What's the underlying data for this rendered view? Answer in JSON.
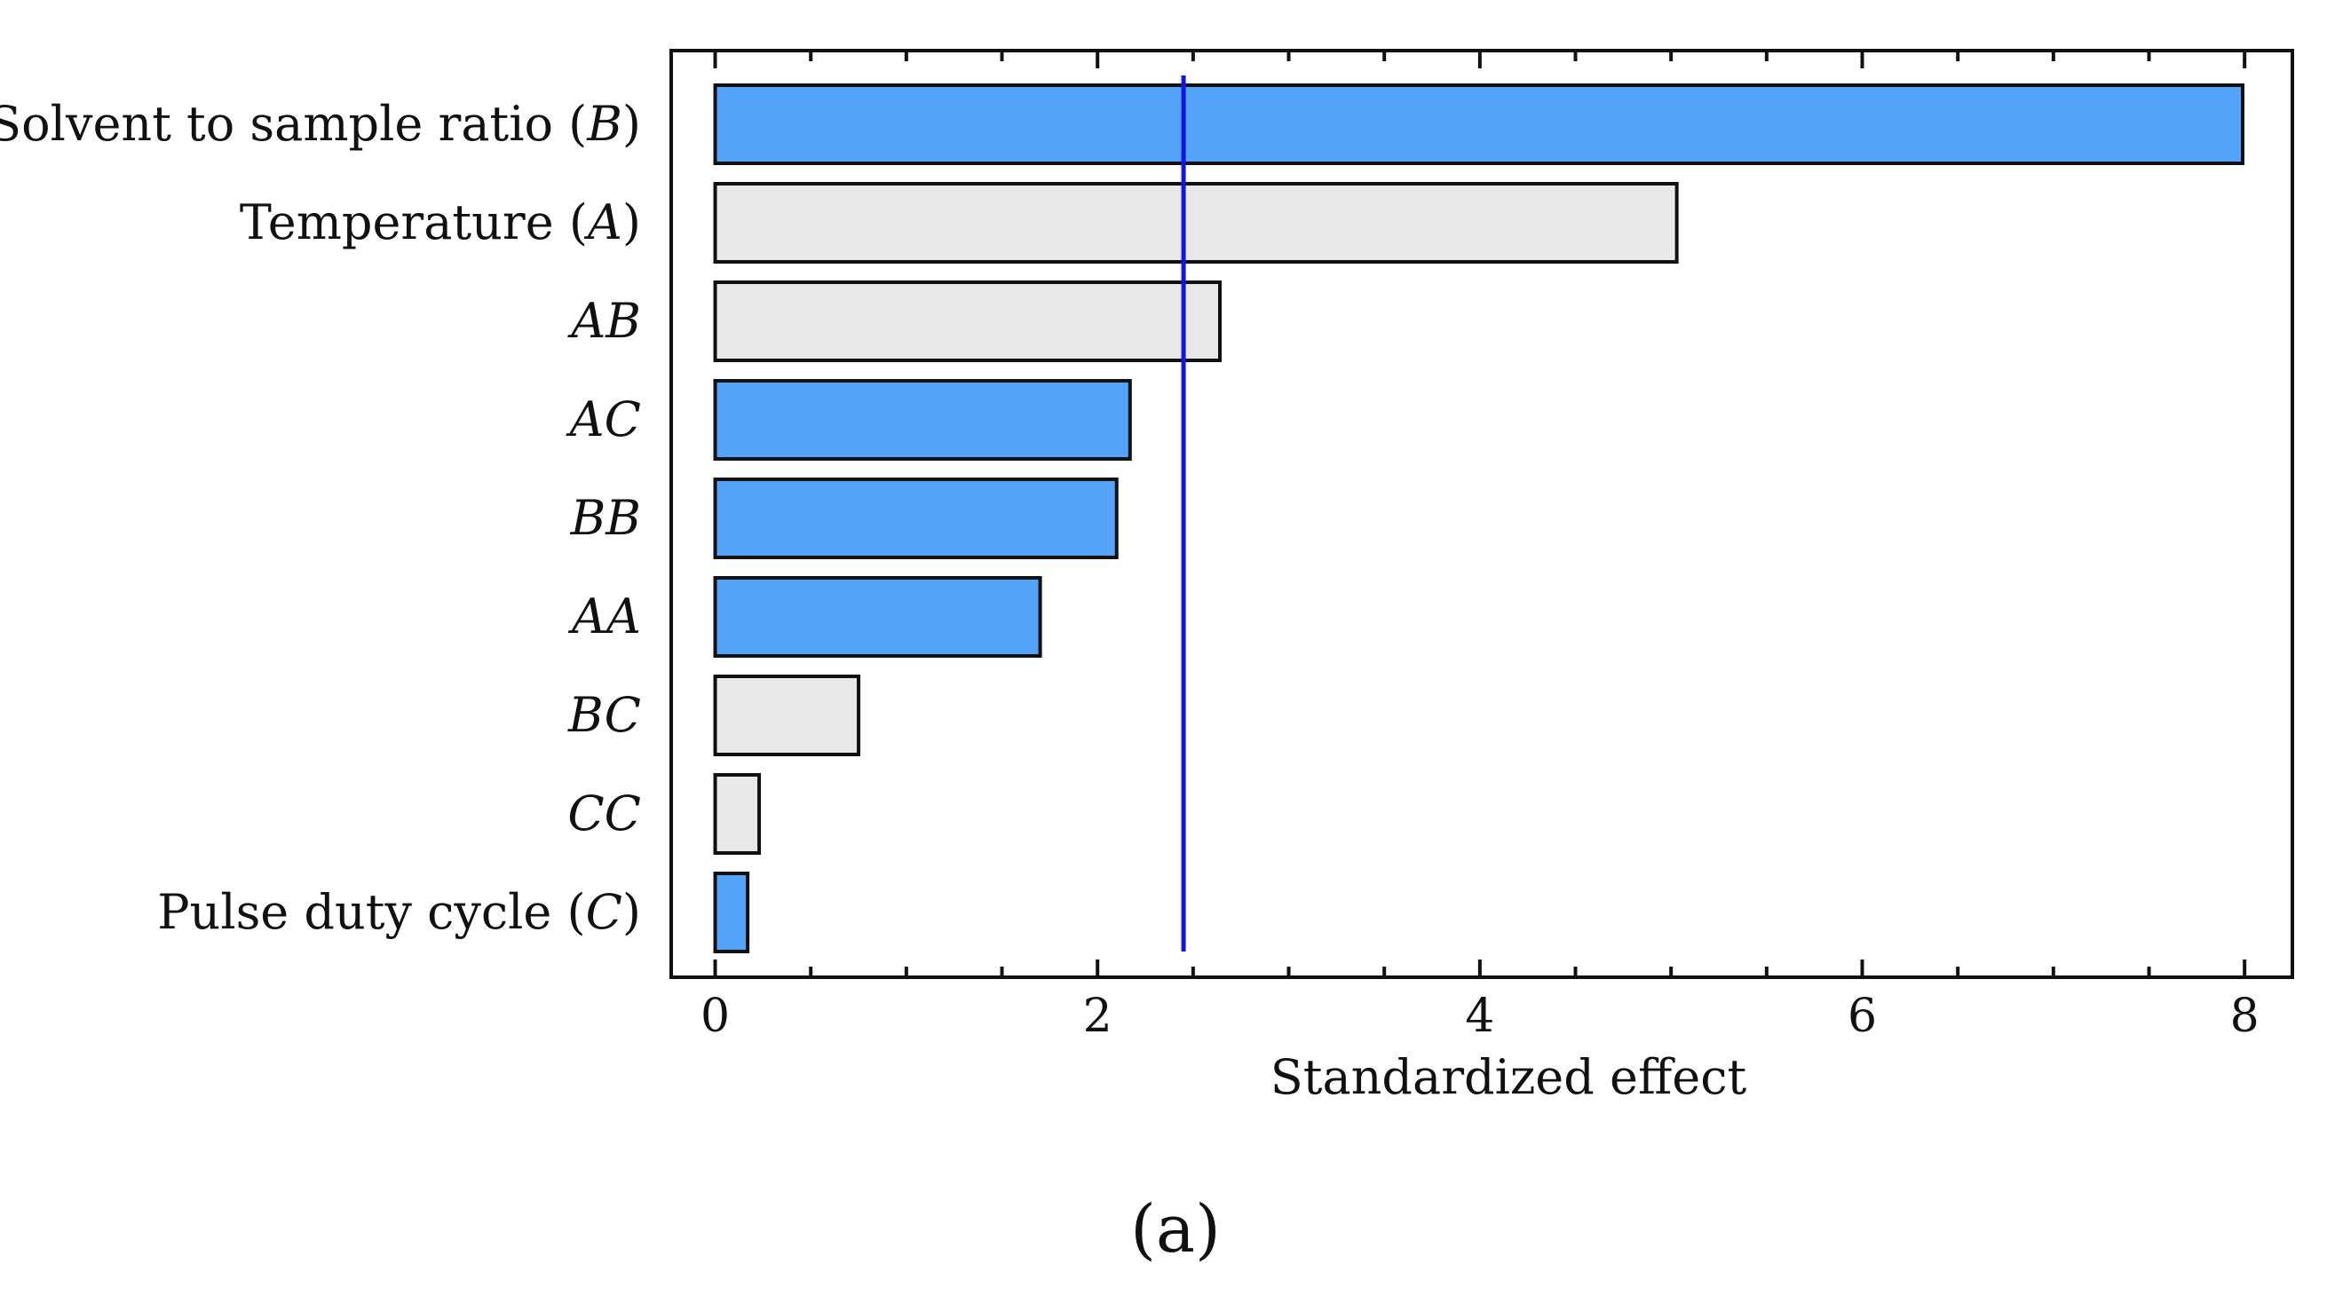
{
  "chart_data": {
    "type": "bar",
    "orientation": "horizontal",
    "title": "",
    "xlabel": "Standardized effect",
    "ylabel": "",
    "xlim": [
      -0.23,
      8.25
    ],
    "x_ticks": [
      0,
      2,
      4,
      6,
      8
    ],
    "minor_tick_step": 0.5,
    "reference_line": {
      "value": 2.45,
      "color": "#1414e6"
    },
    "grid": false,
    "legend": "none",
    "panel_label": "(a)",
    "colors": {
      "positive": "#54a3fa",
      "negative": "#e8e8e8",
      "stroke": "#111111"
    },
    "categories": [
      {
        "label": "Solvent to sample ratio ",
        "factor": "B",
        "value": 7.99,
        "sign": "positive"
      },
      {
        "label": "Temperature ",
        "factor": "A",
        "value": 5.03,
        "sign": "negative"
      },
      {
        "label": "",
        "factor": "AB",
        "value": 2.64,
        "sign": "negative"
      },
      {
        "label": "",
        "factor": "AC",
        "value": 2.17,
        "sign": "positive"
      },
      {
        "label": "",
        "factor": "BB",
        "value": 2.1,
        "sign": "positive"
      },
      {
        "label": "",
        "factor": "AA",
        "value": 1.7,
        "sign": "positive"
      },
      {
        "label": "",
        "factor": "BC",
        "value": 0.75,
        "sign": "negative"
      },
      {
        "label": "",
        "factor": "CC",
        "value": 0.23,
        "sign": "negative"
      },
      {
        "label": "Pulse duty cycle ",
        "factor": "C",
        "value": 0.17,
        "sign": "positive"
      }
    ]
  }
}
